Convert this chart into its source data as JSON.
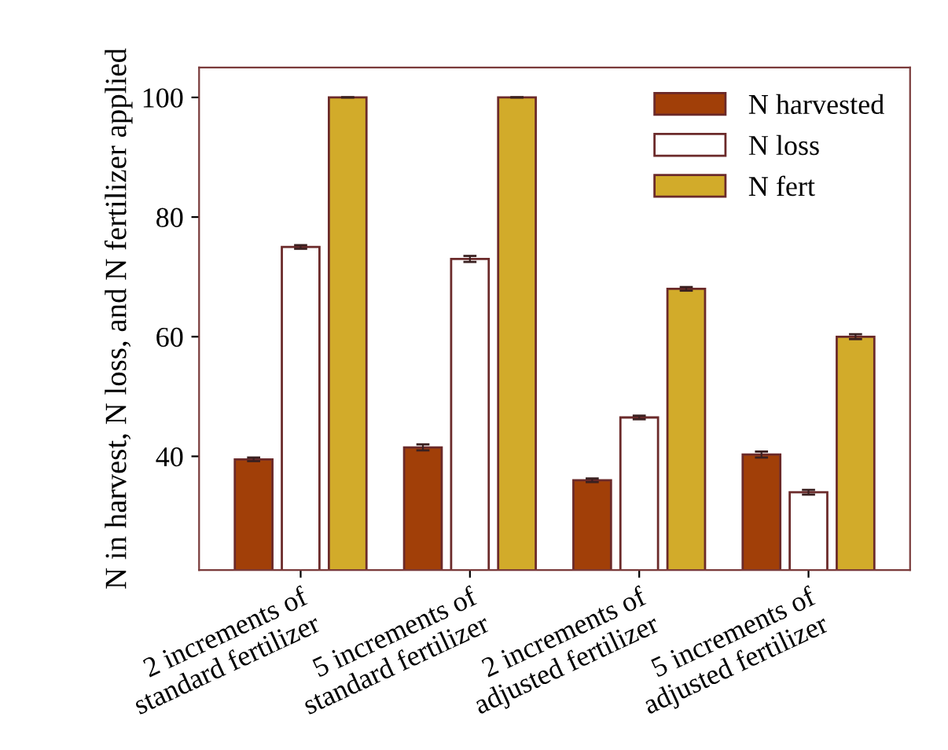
{
  "chart_data": {
    "type": "bar",
    "ylabel": "N in harvest, N loss, and N fertilizer applied",
    "categories": [
      "2 increments of\nstandard fertilizer",
      "5 increments of\nstandard fertilizer",
      "2 increments of\nadjusted fertilizer",
      "5 increments of\nadjusted fertilizer"
    ],
    "series": [
      {
        "name": "N harvested",
        "color": "#a13f08",
        "values": [
          39.5,
          41.5,
          36,
          40.3
        ],
        "errors": [
          0.3,
          0.5,
          0.3,
          0.5
        ]
      },
      {
        "name": "N loss",
        "color": "#ffffff",
        "values": [
          75,
          73,
          46.5,
          34
        ],
        "errors": [
          0.3,
          0.5,
          0.3,
          0.4
        ]
      },
      {
        "name": "N fert",
        "color": "#d2ab2a",
        "values": [
          100,
          100,
          68,
          60
        ],
        "errors": [
          0,
          0,
          0.3,
          0.4
        ]
      }
    ],
    "ylim": [
      21,
      105
    ],
    "yticks": [
      40,
      60,
      80,
      100
    ],
    "grid": false,
    "legend": "top right"
  }
}
